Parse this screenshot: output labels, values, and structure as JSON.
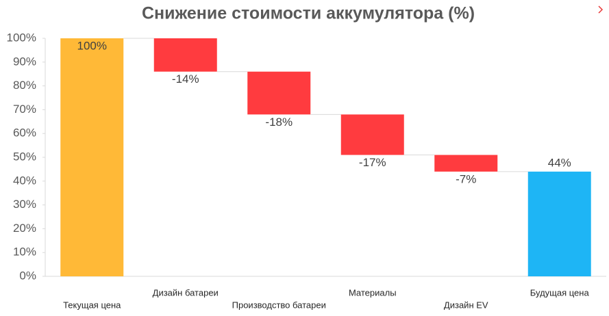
{
  "chart_data": {
    "type": "waterfall",
    "title": "Снижение стоимости аккумулятора (%)",
    "categories": [
      "Текущая цена",
      "Дизайн батареи",
      "Производство батареи",
      "Материалы",
      "Дизайн EV",
      "Будущая цена"
    ],
    "values": [
      100,
      -14,
      -18,
      -17,
      -7,
      44
    ],
    "value_labels": [
      "100%",
      "-14%",
      "-18%",
      "-17%",
      "-7%",
      "44%"
    ],
    "colors": [
      "#FFB937",
      "#FF3B3F",
      "#FF3B3F",
      "#FF3B3F",
      "#FF3B3F",
      "#1EB5F5"
    ],
    "ylim": [
      0,
      100
    ],
    "yticks": [
      {
        "value": 0,
        "label": "0%"
      },
      {
        "value": 10,
        "label": "10%"
      },
      {
        "value": 20,
        "label": "20%"
      },
      {
        "value": 30,
        "label": "30%"
      },
      {
        "value": 40,
        "label": "40%"
      },
      {
        "value": 50,
        "label": "50%"
      },
      {
        "value": 60,
        "label": "60%"
      },
      {
        "value": 70,
        "label": "70%"
      },
      {
        "value": 80,
        "label": "80%"
      },
      {
        "value": 90,
        "label": "90%"
      },
      {
        "value": 100,
        "label": "100%"
      }
    ],
    "grid": false
  }
}
